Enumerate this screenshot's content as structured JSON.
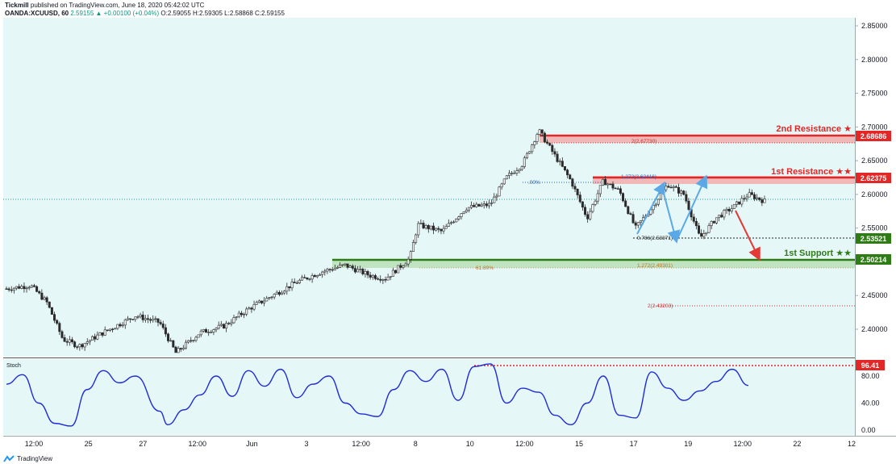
{
  "header": {
    "author": "Tickmill",
    "published": "published on TradingView.com, June 18, 2020 05:42:02 UTC",
    "symbol": "OANDA:XCUUSD, 60",
    "last": "2.59155",
    "change": "+0.00100 (+0.04%)",
    "o": "O:2.59055",
    "h": "H:2.59305",
    "l": "L:2.58868",
    "c": "C:2.59155"
  },
  "footer": {
    "logo_text": "TradingView"
  },
  "colors": {
    "resistance": "#e32727",
    "support": "#2e7d14",
    "candle": "#2b2b2b",
    "stoch": "#1e2bd8",
    "arrow_blue": "#5aa9e6",
    "arrow_red": "#e53935",
    "bg": "#e6f7f8"
  },
  "levels": {
    "r2": {
      "label": "2nd Resistance ★",
      "value": "2.68686"
    },
    "r1": {
      "label": "1st Resistance ★★",
      "value": "2.62375"
    },
    "s1": {
      "label": "1st Support ★★",
      "value": "2.50214"
    },
    "mid": {
      "value": "2.53521"
    }
  },
  "fib_labels": {
    "a": "2(2.67730)",
    "b": "1.272(2.62416)",
    "c": ".00%",
    "d": "0.786(2.53371)",
    "e": "1.272(2.49301)",
    "f": "61.80%",
    "g": "2(2.43203)"
  },
  "stoch": {
    "name": "Stoch",
    "level_value": "96.41",
    "axis_labels": [
      "80.00",
      "40.00",
      "0.00"
    ]
  },
  "chart_data": {
    "type": "candlestick",
    "symbol": "OANDA:XCUUSD, 60",
    "y_axis": {
      "min": 2.35,
      "max": 2.86,
      "ticks": [
        2.85,
        2.8,
        2.75,
        2.7,
        2.65,
        2.6,
        2.55,
        2.5,
        2.45,
        2.4
      ]
    },
    "x_axis": {
      "ticks": [
        "12:00",
        "25",
        "27",
        "12:00",
        "Jun",
        "3",
        "12:00",
        "8",
        "10",
        "12:00",
        "15",
        "17",
        "19",
        "12:00",
        "22",
        "12"
      ]
    },
    "price_path": [
      [
        0,
        2.46
      ],
      [
        0.03,
        2.465
      ],
      [
        0.05,
        2.44
      ],
      [
        0.07,
        2.385
      ],
      [
        0.09,
        2.375
      ],
      [
        0.12,
        2.395
      ],
      [
        0.16,
        2.42
      ],
      [
        0.19,
        2.41
      ],
      [
        0.21,
        2.365
      ],
      [
        0.24,
        2.395
      ],
      [
        0.27,
        2.405
      ],
      [
        0.3,
        2.43
      ],
      [
        0.33,
        2.45
      ],
      [
        0.36,
        2.47
      ],
      [
        0.39,
        2.485
      ],
      [
        0.42,
        2.495
      ],
      [
        0.45,
        2.48
      ],
      [
        0.47,
        2.475
      ],
      [
        0.5,
        2.505
      ],
      [
        0.51,
        2.555
      ],
      [
        0.54,
        2.545
      ],
      [
        0.57,
        2.58
      ],
      [
        0.6,
        2.585
      ],
      [
        0.62,
        2.625
      ],
      [
        0.64,
        2.645
      ],
      [
        0.66,
        2.695
      ],
      [
        0.7,
        2.62
      ],
      [
        0.72,
        2.565
      ],
      [
        0.74,
        2.62
      ],
      [
        0.76,
        2.605
      ],
      [
        0.78,
        2.55
      ],
      [
        0.8,
        2.58
      ],
      [
        0.82,
        2.615
      ],
      [
        0.84,
        2.6
      ],
      [
        0.86,
        2.535
      ],
      [
        0.88,
        2.565
      ],
      [
        0.9,
        2.58
      ],
      [
        0.92,
        2.6
      ],
      [
        0.94,
        2.59
      ]
    ],
    "stochastic_path": [
      [
        0,
        68
      ],
      [
        0.02,
        82
      ],
      [
        0.04,
        40
      ],
      [
        0.06,
        10
      ],
      [
        0.08,
        6
      ],
      [
        0.1,
        60
      ],
      [
        0.12,
        88
      ],
      [
        0.14,
        70
      ],
      [
        0.16,
        80
      ],
      [
        0.19,
        28
      ],
      [
        0.2,
        8
      ],
      [
        0.22,
        30
      ],
      [
        0.24,
        52
      ],
      [
        0.26,
        80
      ],
      [
        0.28,
        50
      ],
      [
        0.3,
        88
      ],
      [
        0.32,
        65
      ],
      [
        0.34,
        90
      ],
      [
        0.36,
        48
      ],
      [
        0.38,
        68
      ],
      [
        0.4,
        80
      ],
      [
        0.42,
        40
      ],
      [
        0.44,
        24
      ],
      [
        0.46,
        20
      ],
      [
        0.48,
        60
      ],
      [
        0.5,
        88
      ],
      [
        0.52,
        72
      ],
      [
        0.54,
        90
      ],
      [
        0.56,
        44
      ],
      [
        0.58,
        94
      ],
      [
        0.6,
        98
      ],
      [
        0.62,
        40
      ],
      [
        0.64,
        62
      ],
      [
        0.66,
        56
      ],
      [
        0.68,
        22
      ],
      [
        0.7,
        8
      ],
      [
        0.72,
        40
      ],
      [
        0.74,
        80
      ],
      [
        0.76,
        22
      ],
      [
        0.78,
        18
      ],
      [
        0.8,
        86
      ],
      [
        0.82,
        62
      ],
      [
        0.84,
        44
      ],
      [
        0.86,
        58
      ],
      [
        0.88,
        72
      ],
      [
        0.9,
        90
      ],
      [
        0.92,
        66
      ]
    ]
  }
}
